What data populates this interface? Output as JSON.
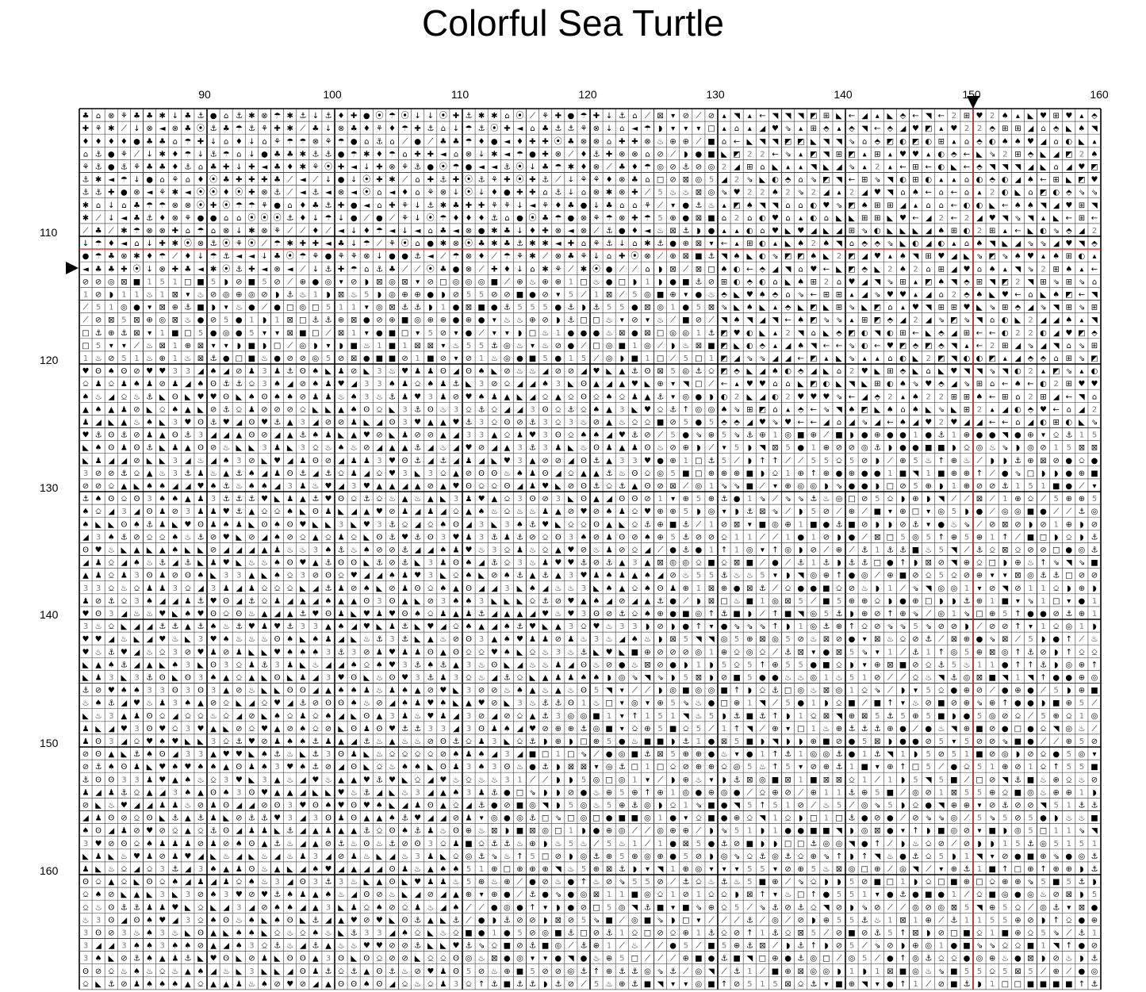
{
  "title": "Colorful Sea Turtle",
  "column_labels": [
    "90",
    "100",
    "110",
    "120",
    "130",
    "140",
    "150",
    "160"
  ],
  "row_labels": [
    "110",
    "120",
    "130",
    "140",
    "150",
    "160"
  ],
  "grid": {
    "first_column": 81,
    "last_column": 160,
    "first_row": 101,
    "visible_rows": 69,
    "center_column": 150,
    "center_row": 112,
    "grid_line_color": "#000000",
    "minor_line_color": "#9a9a9a",
    "center_line_color": "#e03030",
    "symbol_palettes": {
      "upper_left": [
        "◄",
        "♦",
        "✱",
        "☂",
        "⌂",
        "⦿",
        "✚",
        "⟋",
        "⊗",
        "♣",
        "●",
        "⚓",
        "↓",
        "⚘"
      ],
      "upper_right": [
        "◣",
        "◢",
        "⇘",
        "←",
        "⬘",
        "◥",
        "⊞",
        "♥",
        "♠",
        "▴",
        "◐",
        "2",
        "⌂",
        "◩"
      ],
      "middle": [
        "5",
        "⊘",
        "⚓",
        "◎",
        "♨",
        "■",
        "□",
        "◗",
        "⟋",
        "▾",
        "●",
        "⊠",
        "1",
        "⊕"
      ],
      "lower_left": [
        "◣",
        "◢",
        "♨",
        "♠",
        "⚓",
        "Ꙩ",
        "⎐",
        "♥",
        "3",
        "⊘",
        "▲",
        "♟"
      ],
      "lower_right": [
        "◥",
        "⟋",
        "⊘",
        "⎐",
        "⚓",
        "⇘",
        "◎",
        "●",
        "■",
        "1",
        "5",
        "↑",
        "◗",
        "⊕"
      ]
    }
  }
}
